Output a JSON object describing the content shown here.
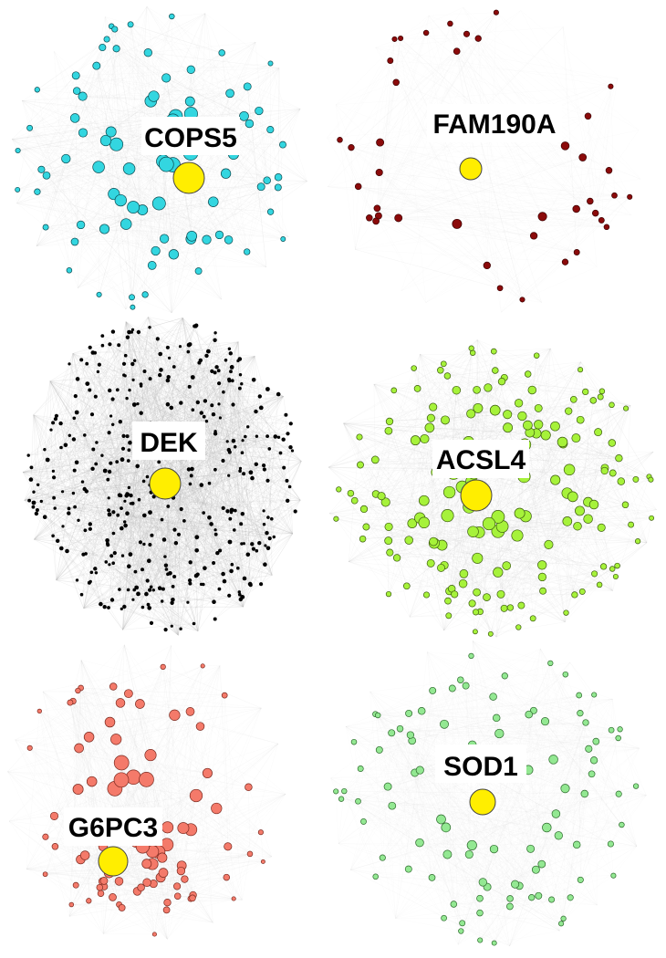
{
  "panels": [
    {
      "id": "cops5",
      "label": "COPS5",
      "node_color": "#33d6e0",
      "hub_color": "#ffee00",
      "edge_color": "#c8c8c8"
    },
    {
      "id": "fam190a",
      "label": "FAM190A",
      "node_color": "#8b0a0a",
      "hub_color": "#ffee00",
      "edge_color": "#d0d0d0"
    },
    {
      "id": "dek",
      "label": "DEK",
      "node_color": "#000000",
      "hub_color": "#ffee00",
      "edge_color": "#b4b4b4"
    },
    {
      "id": "acsl4",
      "label": "ACSL4",
      "node_color": "#a6f23a",
      "hub_color": "#ffee00",
      "edge_color": "#c4c4c4"
    },
    {
      "id": "g6pc3",
      "label": "G6PC3",
      "node_color": "#f47a6a",
      "hub_color": "#ffee00",
      "edge_color": "#cfcfcf"
    },
    {
      "id": "sod1",
      "label": "SOD1",
      "node_color": "#93e892",
      "hub_color": "#ffee00",
      "edge_color": "#d2d2d2"
    }
  ]
}
